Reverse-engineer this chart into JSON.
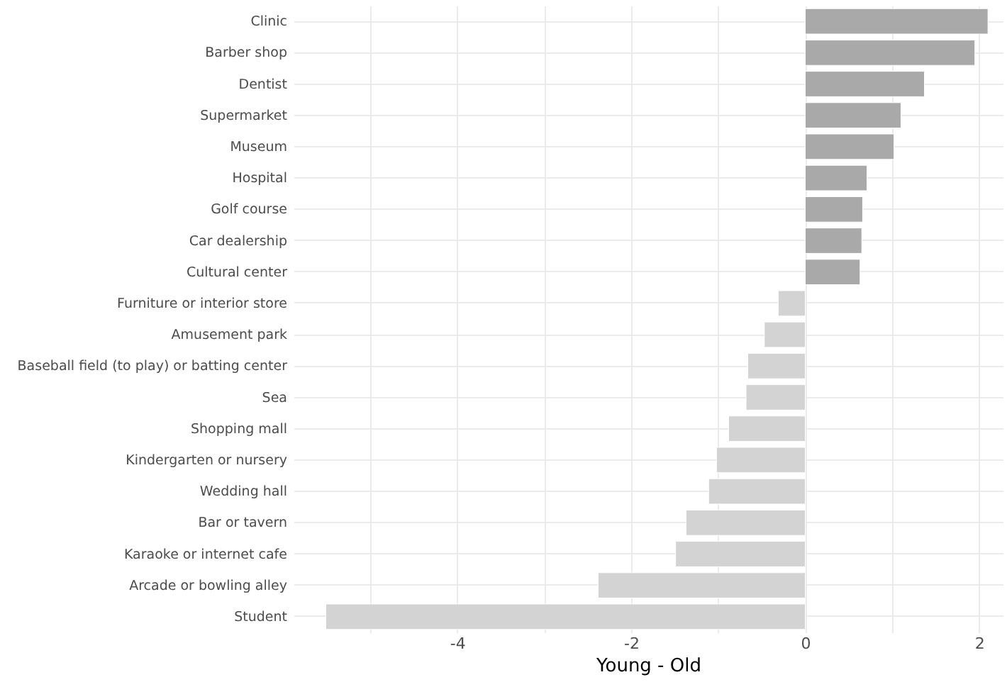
{
  "chart_data": {
    "type": "bar",
    "orientation": "horizontal",
    "xlabel": "Young - Old",
    "categories": [
      "Clinic",
      "Barber shop",
      "Dentist",
      "Supermarket",
      "Museum",
      "Hospital",
      "Golf course",
      "Car dealership",
      "Cultural center",
      "Furniture or interior store",
      "Amusement park",
      "Baseball field (to play) or batting center",
      "Sea",
      "Shopping mall",
      "Kindergarten or nursery",
      "Wedding hall",
      "Bar or tavern",
      "Karaoke or internet cafe",
      "Arcade or bowling alley",
      "Student"
    ],
    "values": [
      2.1,
      1.95,
      1.37,
      1.1,
      1.02,
      0.71,
      0.66,
      0.65,
      0.63,
      -0.31,
      -0.47,
      -0.66,
      -0.68,
      -0.88,
      -1.02,
      -1.11,
      -1.37,
      -1.49,
      -2.38,
      -5.51
    ],
    "colors": [
      "#a9a9a9",
      "#a9a9a9",
      "#a9a9a9",
      "#a9a9a9",
      "#a9a9a9",
      "#a9a9a9",
      "#a9a9a9",
      "#a9a9a9",
      "#a9a9a9",
      "#d3d3d3",
      "#d3d3d3",
      "#d3d3d3",
      "#d3d3d3",
      "#d3d3d3",
      "#d3d3d3",
      "#d3d3d3",
      "#d3d3d3",
      "#d3d3d3",
      "#d3d3d3",
      "#d3d3d3"
    ],
    "xlim": [
      -5.88,
      2.27
    ],
    "xticks": [
      {
        "value": -5,
        "label": null
      },
      -4,
      {
        "value": -3,
        "label": null
      },
      -2,
      {
        "value": -1,
        "label": null
      },
      0,
      {
        "value": 1,
        "label": null
      },
      2
    ],
    "grid": true
  }
}
